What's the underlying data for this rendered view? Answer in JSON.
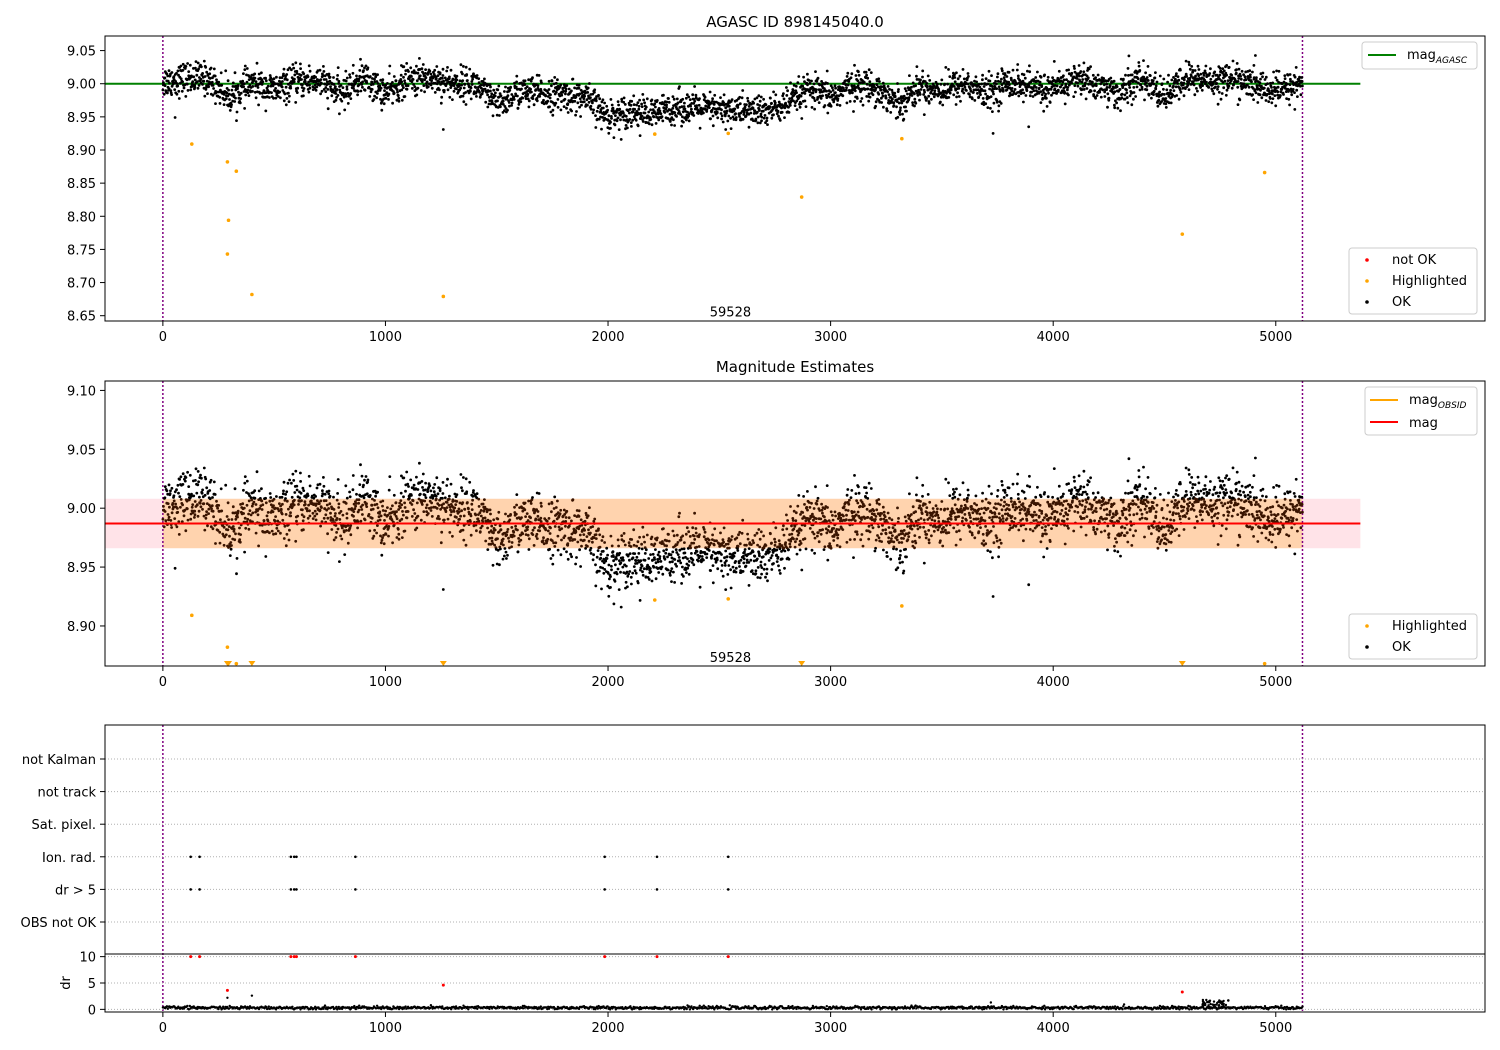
{
  "chart_data": [
    {
      "type": "scatter",
      "title": "AGASC ID 898145040.0",
      "xlim": [
        -260,
        5940
      ],
      "ylim": [
        8.642,
        9.072
      ],
      "x_ticks": [
        0,
        1000,
        2000,
        3000,
        4000,
        5000
      ],
      "y_ticks": [
        8.65,
        8.7,
        8.75,
        8.8,
        8.85,
        8.9,
        8.95,
        9.0,
        9.05
      ],
      "y_tick_labels": [
        "8.65",
        "8.70",
        "8.75",
        "8.80",
        "8.85",
        "8.90",
        "8.95",
        "9.00",
        "9.05"
      ],
      "annotation": "59528",
      "annotation_at": [
        2550,
        8.655
      ],
      "vlines": [
        0,
        5120
      ],
      "hline": {
        "name": "mag_AGASC",
        "y": 9.0,
        "x_range": [
          -260,
          5380
        ],
        "color": "#008000"
      },
      "legend_upper": [
        {
          "label": "mag",
          "subscript": "AGASC",
          "kind": "line",
          "color": "#008000"
        }
      ],
      "legend_lower": [
        {
          "label": "not OK",
          "kind": "dot",
          "color": "#ff0000"
        },
        {
          "label": "Highlighted",
          "kind": "dot",
          "color": "#ffa500"
        },
        {
          "label": "OK",
          "kind": "dot",
          "color": "#000000"
        }
      ],
      "series": [
        {
          "name": "Highlighted",
          "color": "#ffa500",
          "points": [
            [
              130,
              8.909
            ],
            [
              290,
              8.882
            ],
            [
              330,
              8.868
            ],
            [
              295,
              8.794
            ],
            [
              290,
              8.743
            ],
            [
              400,
              8.682
            ],
            [
              1260,
              8.679
            ],
            [
              2210,
              8.924
            ],
            [
              2540,
              8.925
            ],
            [
              2870,
              8.829
            ],
            [
              3320,
              8.917
            ],
            [
              4580,
              8.773
            ],
            [
              4950,
              8.866
            ]
          ]
        },
        {
          "name": "OK",
          "color": "#000000",
          "x_range": [
            0,
            5120
          ],
          "trend": [
            [
              0,
              9.003
            ],
            [
              100,
              9.008
            ],
            [
              200,
              9.008
            ],
            [
              300,
              8.98
            ],
            [
              400,
              9.0
            ],
            [
              500,
              8.99
            ],
            [
              600,
              9.003
            ],
            [
              700,
              9.005
            ],
            [
              800,
              8.985
            ],
            [
              900,
              9.01
            ],
            [
              1000,
              8.985
            ],
            [
              1100,
              9.005
            ],
            [
              1200,
              9.01
            ],
            [
              1300,
              9.0
            ],
            [
              1400,
              9.0
            ],
            [
              1500,
              8.968
            ],
            [
              1600,
              8.988
            ],
            [
              1700,
              8.985
            ],
            [
              1800,
              8.983
            ],
            [
              1900,
              8.978
            ],
            [
              2000,
              8.95
            ],
            [
              2100,
              8.96
            ],
            [
              2200,
              8.953
            ],
            [
              2300,
              8.965
            ],
            [
              2400,
              8.963
            ],
            [
              2500,
              8.96
            ],
            [
              2600,
              8.96
            ],
            [
              2700,
              8.958
            ],
            [
              2800,
              8.968
            ],
            [
              2900,
              8.99
            ],
            [
              3000,
              8.98
            ],
            [
              3100,
              8.998
            ],
            [
              3200,
              8.995
            ],
            [
              3300,
              8.97
            ],
            [
              3400,
              8.995
            ],
            [
              3500,
              8.99
            ],
            [
              3600,
              9.0
            ],
            [
              3700,
              8.985
            ],
            [
              3800,
              9.003
            ],
            [
              3900,
              8.995
            ],
            [
              4000,
              8.99
            ],
            [
              4100,
              9.008
            ],
            [
              4200,
              8.998
            ],
            [
              4300,
              8.985
            ],
            [
              4400,
              9.008
            ],
            [
              4500,
              8.98
            ],
            [
              4600,
              9.008
            ],
            [
              4700,
              9.005
            ],
            [
              4800,
              9.008
            ],
            [
              4900,
              8.998
            ],
            [
              5000,
              8.988
            ],
            [
              5120,
              9.003
            ]
          ],
          "scatter_sd": 0.012,
          "outliers": [
            [
              55,
              8.949
            ],
            [
              1260,
              8.931
            ],
            [
              3730,
              8.925
            ],
            [
              3890,
              8.935
            ],
            [
              4340,
              9.042
            ]
          ]
        }
      ]
    },
    {
      "type": "scatter",
      "title": "Magnitude Estimates",
      "xlim": [
        -260,
        5940
      ],
      "ylim": [
        8.866,
        9.108
      ],
      "x_ticks": [
        0,
        1000,
        2000,
        3000,
        4000,
        5000
      ],
      "y_ticks": [
        8.9,
        8.95,
        9.0,
        9.05,
        9.1
      ],
      "y_tick_labels": [
        "8.90",
        "8.95",
        "9.00",
        "9.05",
        "9.10"
      ],
      "annotation": "59528",
      "annotation_at": [
        2550,
        8.873
      ],
      "vlines": [
        0,
        5120
      ],
      "mag": {
        "value": 8.987,
        "band_outer": [
          8.966,
          9.008
        ],
        "band_inner": [
          8.966,
          9.008
        ],
        "x_range": [
          -260,
          5380
        ],
        "color": "#ff0000"
      },
      "legend_upper": [
        {
          "label": "mag",
          "subscript": "OBSID",
          "kind": "line",
          "color": "#ffa500"
        },
        {
          "label": "mag",
          "kind": "line",
          "color": "#ff0000"
        }
      ],
      "legend_lower": [
        {
          "label": "Highlighted",
          "kind": "dot",
          "color": "#ffa500"
        },
        {
          "label": "OK",
          "kind": "dot",
          "color": "#000000"
        }
      ],
      "series": [
        {
          "name": "Highlighted",
          "color": "#ffa500",
          "points": [
            [
              130,
              8.909
            ],
            [
              290,
              8.882
            ],
            [
              330,
              8.868
            ],
            [
              2210,
              8.922
            ],
            [
              2540,
              8.923
            ],
            [
              3320,
              8.917
            ],
            [
              4950,
              8.868
            ]
          ]
        },
        {
          "name": "Highlighted (below axis)",
          "color": "#ffa500",
          "marker": "down-triangle",
          "points": [
            [
              290,
              8.866
            ],
            [
              295,
              8.866
            ],
            [
              400,
              8.866
            ],
            [
              1260,
              8.866
            ],
            [
              2870,
              8.866
            ],
            [
              4580,
              8.866
            ]
          ]
        },
        {
          "name": "OK",
          "color": "#000000",
          "same_as_panel": 0
        }
      ]
    },
    {
      "type": "scatter",
      "xlim": [
        -260,
        5940
      ],
      "x_ticks": [
        0,
        1000,
        2000,
        3000,
        4000,
        5000
      ],
      "vlines": [
        0,
        5120
      ],
      "flag_rows": [
        "not Kalman",
        "not track",
        "Sat. pixel.",
        "Ion. rad.",
        "dr > 5",
        "OBS not OK"
      ],
      "flag_points": [
        {
          "row": "Ion. rad.",
          "x": [
            125,
            165,
            575,
            590,
            600,
            865,
            1985,
            2220,
            2540
          ]
        },
        {
          "row": "dr > 5",
          "x": [
            125,
            165,
            575,
            590,
            600,
            865,
            1985,
            2220,
            2540
          ]
        }
      ],
      "dr": {
        "ylabel": "dr",
        "ylim": [
          -0.5,
          10.5
        ],
        "y_ticks": [
          0,
          5,
          10
        ],
        "y_tick_labels": [
          "0",
          "5",
          "10"
        ],
        "red_points": [
          [
            125,
            10
          ],
          [
            165,
            10
          ],
          [
            575,
            10
          ],
          [
            590,
            10
          ],
          [
            600,
            10
          ],
          [
            865,
            10
          ],
          [
            1985,
            10
          ],
          [
            2220,
            10
          ],
          [
            2540,
            10
          ],
          [
            290,
            3.6
          ],
          [
            1260,
            4.6
          ],
          [
            4580,
            3.3
          ]
        ],
        "black_trend": 0.3,
        "black_extras": [
          [
            290,
            2.2
          ],
          [
            400,
            2.6
          ],
          [
            3720,
            1.3
          ],
          [
            4700,
            1.5
          ],
          [
            4750,
            1.3
          ]
        ]
      }
    }
  ]
}
